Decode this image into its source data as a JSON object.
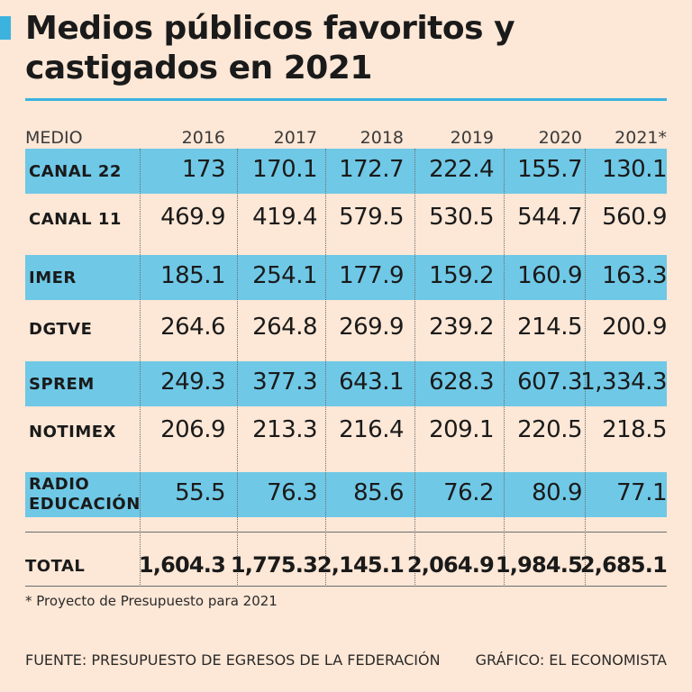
{
  "title": "Medios públicos favoritos y castigados en 2021",
  "accent_color": "#3cb3df",
  "band_color": "#6fc8e6",
  "background_color": "#fde7d6",
  "chart_data": {
    "type": "table",
    "title": "Medios públicos favoritos y castigados en 2021",
    "column_header": "MEDIO",
    "years": [
      "2016",
      "2017",
      "2018",
      "2019",
      "2020",
      "2021*"
    ],
    "rows": [
      {
        "name": "CANAL 22",
        "highlight": true,
        "values": [
          "173",
          "170.1",
          "172.7",
          "222.4",
          "155.7",
          "130.1"
        ]
      },
      {
        "name": "CANAL 11",
        "highlight": false,
        "values": [
          "469.9",
          "419.4",
          "579.5",
          "530.5",
          "544.7",
          "560.9"
        ]
      },
      {
        "name": "IMER",
        "highlight": true,
        "values": [
          "185.1",
          "254.1",
          "177.9",
          "159.2",
          "160.9",
          "163.3"
        ]
      },
      {
        "name": "DGTVE",
        "highlight": false,
        "values": [
          "264.6",
          "264.8",
          "269.9",
          "239.2",
          "214.5",
          "200.9"
        ]
      },
      {
        "name": "SPREM",
        "highlight": true,
        "values": [
          "249.3",
          "377.3",
          "643.1",
          "628.3",
          "607.3",
          "1,334.3"
        ]
      },
      {
        "name": "NOTIMEX",
        "highlight": false,
        "values": [
          "206.9",
          "213.3",
          "216.4",
          "209.1",
          "220.5",
          "218.5"
        ]
      },
      {
        "name": "RADIO EDUCACIÓN",
        "highlight": true,
        "values": [
          "55.5",
          "76.3",
          "85.6",
          "76.2",
          "80.9",
          "77.1"
        ]
      }
    ],
    "total": {
      "name": "TOTAL",
      "values": [
        "1,604.3",
        "1,775.3",
        "2,145.1",
        "2,064.9",
        "1,984.5",
        "2,685.1"
      ]
    }
  },
  "footnote": "* Proyecto de Presupuesto para 2021",
  "source": "FUENTE: PRESUPUESTO DE EGRESOS DE LA FEDERACIÓN",
  "credit": "GRÁFICO: EL ECONOMISTA"
}
